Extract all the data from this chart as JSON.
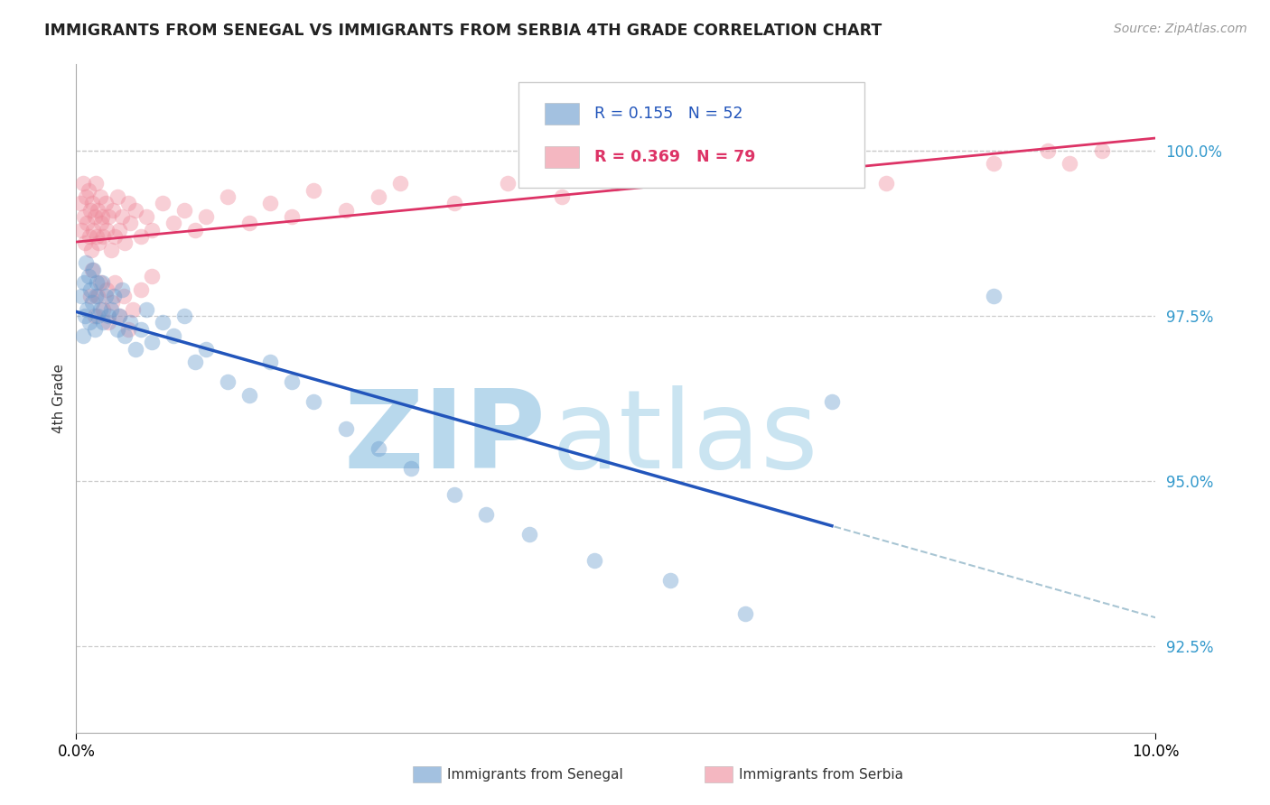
{
  "title": "IMMIGRANTS FROM SENEGAL VS IMMIGRANTS FROM SERBIA 4TH GRADE CORRELATION CHART",
  "source": "Source: ZipAtlas.com",
  "ylabel": "4th Grade",
  "r_senegal": 0.155,
  "n_senegal": 52,
  "r_serbia": 0.369,
  "n_serbia": 79,
  "xlim": [
    0.0,
    10.0
  ],
  "ylim": [
    91.2,
    101.3
  ],
  "yticks": [
    92.5,
    95.0,
    97.5,
    100.0
  ],
  "ytick_labels": [
    "92.5%",
    "95.0%",
    "97.5%",
    "100.0%"
  ],
  "color_senegal": "#6699cc",
  "color_serbia": "#ee8899",
  "trendline_senegal_color": "#2255bb",
  "trendline_serbia_color": "#dd3366",
  "dashed_color": "#99bbcc",
  "background_color": "#ffffff",
  "watermark_zip_color": "#b8d8ec",
  "watermark_atlas_color": "#c5e2f0",
  "legend_bottom_left": "Immigrants from Senegal",
  "legend_bottom_right": "Immigrants from Serbia",
  "senegal_x": [
    0.05,
    0.06,
    0.07,
    0.08,
    0.09,
    0.1,
    0.11,
    0.12,
    0.13,
    0.15,
    0.16,
    0.17,
    0.18,
    0.19,
    0.2,
    0.22,
    0.24,
    0.25,
    0.27,
    0.3,
    0.32,
    0.35,
    0.38,
    0.4,
    0.42,
    0.45,
    0.5,
    0.55,
    0.6,
    0.65,
    0.7,
    0.8,
    0.9,
    1.0,
    1.1,
    1.2,
    1.4,
    1.6,
    1.8,
    2.0,
    2.2,
    2.5,
    2.8,
    3.1,
    3.5,
    3.8,
    4.2,
    4.8,
    5.5,
    6.2,
    7.0,
    8.5
  ],
  "senegal_y": [
    97.8,
    97.2,
    98.0,
    97.5,
    98.3,
    97.6,
    98.1,
    97.4,
    97.9,
    97.7,
    98.2,
    97.3,
    97.8,
    98.0,
    97.5,
    97.6,
    98.0,
    97.4,
    97.8,
    97.5,
    97.6,
    97.8,
    97.3,
    97.5,
    97.9,
    97.2,
    97.4,
    97.0,
    97.3,
    97.6,
    97.1,
    97.4,
    97.2,
    97.5,
    96.8,
    97.0,
    96.5,
    96.3,
    96.8,
    96.5,
    96.2,
    95.8,
    95.5,
    95.2,
    94.8,
    94.5,
    94.2,
    93.8,
    93.5,
    93.0,
    96.2,
    97.8
  ],
  "serbia_x": [
    0.04,
    0.05,
    0.06,
    0.07,
    0.08,
    0.09,
    0.1,
    0.11,
    0.12,
    0.13,
    0.14,
    0.15,
    0.16,
    0.17,
    0.18,
    0.19,
    0.2,
    0.21,
    0.22,
    0.23,
    0.24,
    0.25,
    0.27,
    0.28,
    0.3,
    0.32,
    0.34,
    0.36,
    0.38,
    0.4,
    0.42,
    0.45,
    0.48,
    0.5,
    0.55,
    0.6,
    0.65,
    0.7,
    0.8,
    0.9,
    1.0,
    1.1,
    1.2,
    1.4,
    1.6,
    1.8,
    2.0,
    2.2,
    2.5,
    2.8,
    3.0,
    3.5,
    4.0,
    4.5,
    5.0,
    5.5,
    6.0,
    7.0,
    7.5,
    8.5,
    9.0,
    9.2,
    9.5,
    0.13,
    0.15,
    0.17,
    0.2,
    0.22,
    0.25,
    0.28,
    0.3,
    0.33,
    0.36,
    0.4,
    0.44,
    0.48,
    0.52,
    0.6,
    0.7
  ],
  "serbia_y": [
    99.2,
    98.8,
    99.5,
    99.0,
    98.6,
    99.3,
    98.9,
    99.4,
    98.7,
    99.1,
    98.5,
    99.2,
    98.8,
    99.0,
    99.5,
    98.7,
    99.1,
    98.6,
    99.3,
    98.9,
    99.0,
    98.7,
    99.2,
    98.8,
    99.0,
    98.5,
    99.1,
    98.7,
    99.3,
    98.8,
    99.0,
    98.6,
    99.2,
    98.9,
    99.1,
    98.7,
    99.0,
    98.8,
    99.2,
    98.9,
    99.1,
    98.8,
    99.0,
    99.3,
    98.9,
    99.2,
    99.0,
    99.4,
    99.1,
    99.3,
    99.5,
    99.2,
    99.5,
    99.3,
    99.5,
    99.8,
    99.6,
    99.8,
    99.5,
    99.8,
    100.0,
    99.8,
    100.0,
    97.8,
    98.2,
    97.5,
    97.8,
    98.0,
    97.6,
    97.9,
    97.4,
    97.7,
    98.0,
    97.5,
    97.8,
    97.3,
    97.6,
    97.9,
    98.1
  ]
}
